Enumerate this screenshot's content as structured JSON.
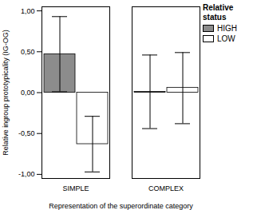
{
  "chart_data": {
    "type": "bar",
    "x_label": "Representation of the superordinate category",
    "y_label": "Relative ingroup prototypicality (IG-OG)",
    "legend_title": "Relative status",
    "legend": "top-right",
    "categories": [
      "SIMPLE",
      "COMPLEX"
    ],
    "series": [
      {
        "name": "HIGH",
        "color": "#8c8c8c",
        "values": [
          0.47,
          0.01
        ],
        "error_low": [
          0.01,
          -0.44
        ],
        "error_high": [
          0.93,
          0.46
        ]
      },
      {
        "name": "LOW",
        "color": "#ffffff",
        "values": [
          -0.63,
          0.06
        ],
        "error_low": [
          -0.97,
          -0.38
        ],
        "error_high": [
          -0.29,
          0.49
        ]
      }
    ],
    "ylim": [
      -1.05,
      1.05
    ],
    "yticks": [
      {
        "value": -1,
        "label": "-1,00"
      },
      {
        "value": -0.5,
        "label": "-0,50"
      },
      {
        "value": 0,
        "label": "0,00"
      },
      {
        "value": 0.5,
        "label": "0,50"
      },
      {
        "value": 1,
        "label": "1,00"
      }
    ],
    "grid": false
  }
}
